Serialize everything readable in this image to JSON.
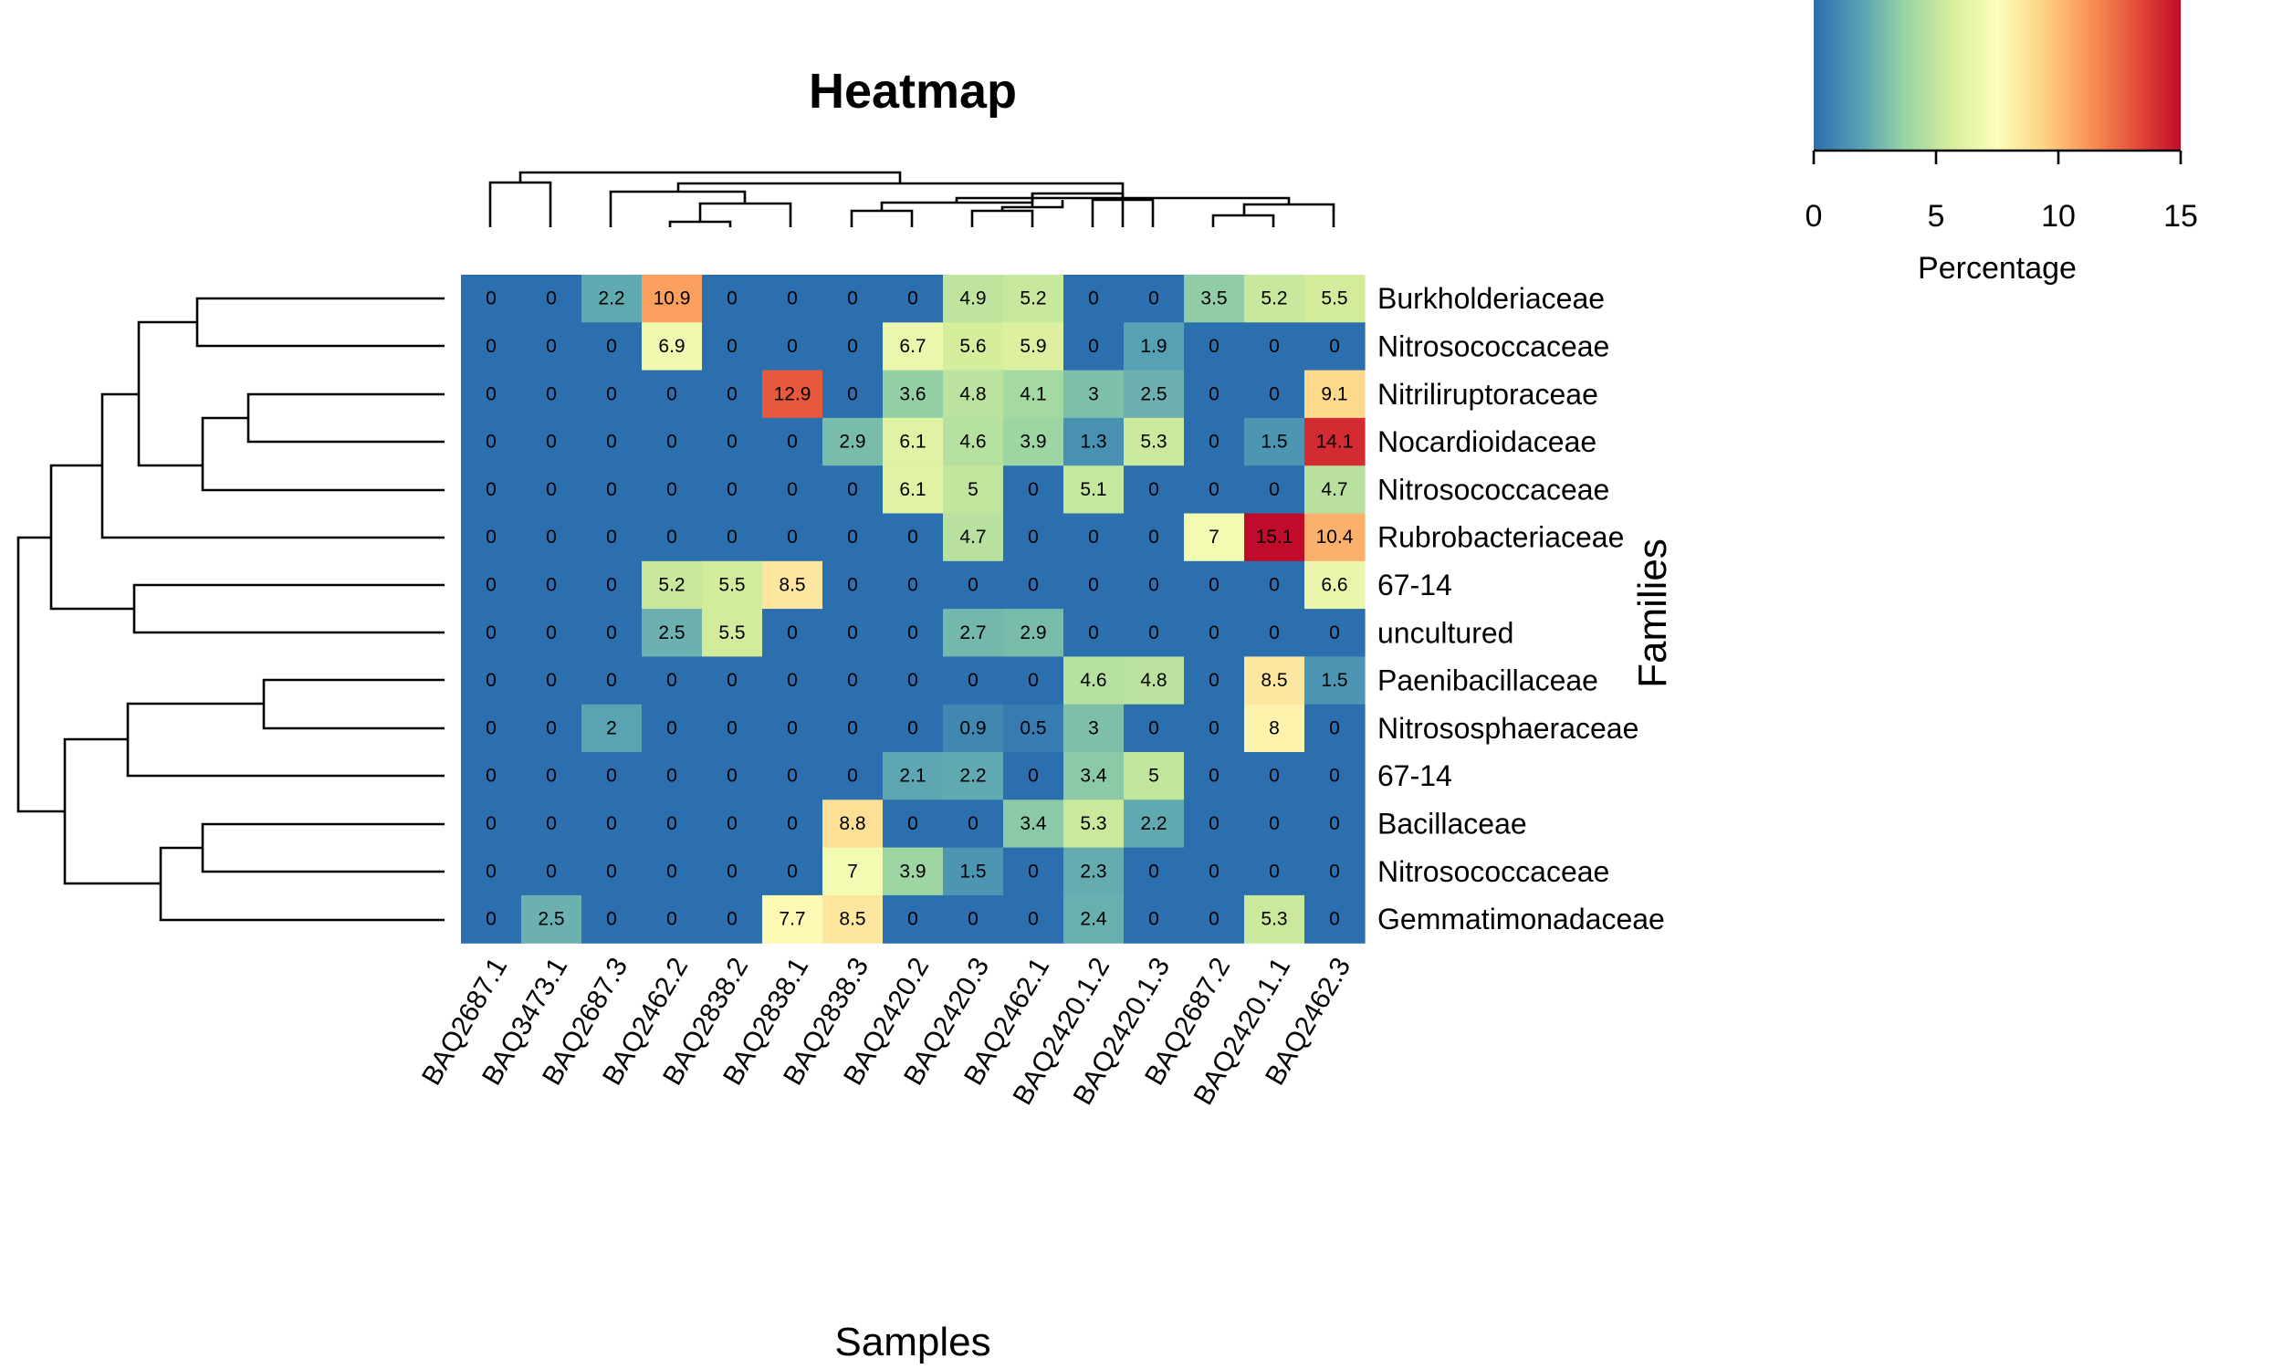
{
  "chart_data": {
    "type": "heatmap",
    "title": "Heatmap",
    "xlabel": "Samples",
    "ylabel": "Families",
    "columns": [
      "BAQ2687.1",
      "BAQ3473.1",
      "BAQ2687.3",
      "BAQ2462.2",
      "BAQ2838.2",
      "BAQ2838.1",
      "BAQ2838.3",
      "BAQ2420.2",
      "BAQ2420.3",
      "BAQ2462.1",
      "BAQ2420.1.2",
      "BAQ2420.1.3",
      "BAQ2687.2",
      "BAQ2420.1.1",
      "BAQ2462.3"
    ],
    "rows": [
      "Burkholderiaceae",
      "Nitrosococcaceae",
      "Nitriliruptoraceae",
      "Nocardioidaceae",
      "Nitrosococcaceae",
      "Rubrobacteriaceae",
      "67-14",
      "uncultured",
      "Paenibacillaceae",
      "Nitrososphaeraceae",
      "67-14",
      "Bacillaceae",
      "Nitrosococcaceae",
      "Gemmatimonadaceae"
    ],
    "values": [
      [
        0,
        0,
        2.2,
        10.9,
        0,
        0,
        0,
        0,
        4.9,
        5.2,
        0,
        0,
        3.5,
        5.2,
        5.5
      ],
      [
        0,
        0,
        0,
        6.9,
        0,
        0,
        0,
        6.7,
        5.6,
        5.9,
        0,
        1.9,
        0,
        0,
        0
      ],
      [
        0,
        0,
        0,
        0,
        0,
        12.9,
        0,
        3.6,
        4.8,
        4.1,
        3,
        2.5,
        0,
        0,
        9.1
      ],
      [
        0,
        0,
        0,
        0,
        0,
        0,
        2.9,
        6.1,
        4.6,
        3.9,
        1.3,
        5.3,
        0,
        1.5,
        14.1
      ],
      [
        0,
        0,
        0,
        0,
        0,
        0,
        0,
        6.1,
        5,
        0,
        5.1,
        0,
        0,
        0,
        4.7
      ],
      [
        0,
        0,
        0,
        0,
        0,
        0,
        0,
        0,
        4.7,
        0,
        0,
        0,
        7,
        15.1,
        10.4
      ],
      [
        0,
        0,
        0,
        5.2,
        5.5,
        8.5,
        0,
        0,
        0,
        0,
        0,
        0,
        0,
        0,
        6.6
      ],
      [
        0,
        0,
        0,
        2.5,
        5.5,
        0,
        0,
        0,
        2.7,
        2.9,
        0,
        0,
        0,
        0,
        0
      ],
      [
        0,
        0,
        0,
        0,
        0,
        0,
        0,
        0,
        0,
        0,
        4.6,
        4.8,
        0,
        8.5,
        1.5
      ],
      [
        0,
        0,
        2,
        0,
        0,
        0,
        0,
        0,
        0.9,
        0.5,
        3,
        0,
        0,
        8,
        0
      ],
      [
        0,
        0,
        0,
        0,
        0,
        0,
        0,
        2.1,
        2.2,
        0,
        3.4,
        5,
        0,
        0,
        0
      ],
      [
        0,
        0,
        0,
        0,
        0,
        0,
        8.8,
        0,
        0,
        3.4,
        5.3,
        2.2,
        0,
        0,
        0
      ],
      [
        0,
        0,
        0,
        0,
        0,
        0,
        7,
        3.9,
        1.5,
        0,
        2.3,
        0,
        0,
        0,
        0
      ],
      [
        0,
        2.5,
        0,
        0,
        0,
        7.7,
        8.5,
        0,
        0,
        0,
        2.4,
        0,
        0,
        5.3,
        0
      ]
    ],
    "colorscale": {
      "title": "Percentage",
      "min": 0,
      "max": 15,
      "ticks": [
        0,
        5,
        10,
        15
      ],
      "colors": [
        "#2c6fae",
        "#55a0b4",
        "#99d4a4",
        "#d6ee9b",
        "#fdfeba",
        "#fdd385",
        "#f99355",
        "#e5503a",
        "#c10b2a"
      ]
    }
  }
}
